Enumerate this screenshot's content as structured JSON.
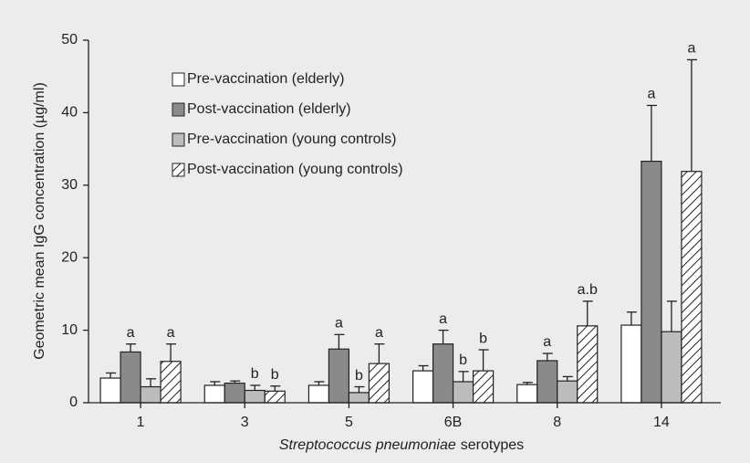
{
  "chart_data": {
    "type": "bar",
    "ylabel": "Geometric mean IgG concentration (µg/ml)",
    "xlabel": [
      "Streptococcus pneumoniae",
      "serotypes"
    ],
    "categories": [
      "1",
      "3",
      "5",
      "6B",
      "8",
      "14"
    ],
    "ylim": [
      0,
      50
    ],
    "yticks": [
      0,
      10,
      20,
      30,
      40,
      50
    ],
    "legend": "upper left",
    "series": [
      {
        "name": "Pre-vaccination (elderly)",
        "color": "#ffffff",
        "pattern": "solid",
        "values": [
          3.4,
          2.4,
          2.4,
          4.4,
          2.5,
          10.7
        ],
        "errors": [
          0.7,
          0.5,
          0.5,
          0.7,
          0.3,
          1.8
        ],
        "annotations": [
          null,
          null,
          null,
          null,
          null,
          null
        ]
      },
      {
        "name": "Post-vaccination (elderly)",
        "color": "#8a8a8a",
        "pattern": "solid",
        "values": [
          7.0,
          2.7,
          7.4,
          8.1,
          5.8,
          33.3
        ],
        "errors": [
          1.1,
          0.3,
          2.0,
          1.9,
          1.0,
          7.7
        ],
        "annotations": [
          "a",
          null,
          "a",
          "a",
          "a",
          "a"
        ]
      },
      {
        "name": "Pre-vaccination (young controls)",
        "color": "#bcbcbc",
        "pattern": "solid",
        "values": [
          2.2,
          1.7,
          1.4,
          2.9,
          3.0,
          9.8
        ],
        "errors": [
          1.1,
          0.7,
          0.8,
          1.4,
          0.6,
          4.2
        ],
        "annotations": [
          null,
          "b",
          "b",
          "b",
          null,
          null
        ]
      },
      {
        "name": "Post-vaccination (young controls)",
        "color": "#ffffff",
        "pattern": "hatch",
        "values": [
          5.7,
          1.6,
          5.4,
          4.4,
          10.6,
          31.9
        ],
        "errors": [
          2.4,
          0.7,
          2.7,
          2.9,
          3.4,
          15.4
        ],
        "annotations": [
          "a",
          "b",
          "a",
          "b",
          "a.b",
          "a"
        ]
      }
    ]
  }
}
